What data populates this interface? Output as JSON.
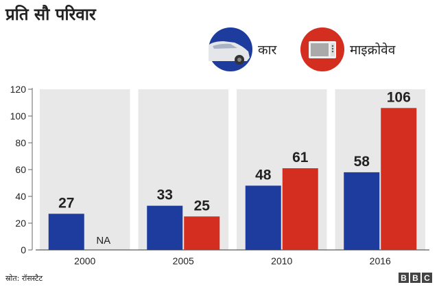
{
  "header": {
    "title": "प्रति सौ परिवार"
  },
  "legend": [
    {
      "label": "कार",
      "color": "#1d3c9e",
      "icon": "car-icon"
    },
    {
      "label": "माइक्रोवेव",
      "color": "#d42e20",
      "icon": "microwave-icon"
    }
  ],
  "chart_data": {
    "type": "bar",
    "title": "प्रति सौ परिवार",
    "categories": [
      "2000",
      "2005",
      "2010",
      "2016"
    ],
    "series": [
      {
        "name": "कार",
        "color": "#1d3c9e",
        "values": [
          27,
          33,
          48,
          58
        ],
        "labels": [
          "27",
          "33",
          "48",
          "58"
        ]
      },
      {
        "name": "माइक्रोवेव",
        "color": "#d42e20",
        "values": [
          null,
          25,
          61,
          106
        ],
        "labels": [
          "NA",
          "25",
          "61",
          "106"
        ]
      }
    ],
    "yticks": [
      "0",
      "20",
      "40",
      "60",
      "80",
      "100",
      "120"
    ],
    "ylim": [
      0,
      120
    ],
    "xlabel": "",
    "ylabel": "",
    "grid": false,
    "legend_position": "top-right",
    "band_color": "#e8e8e8"
  },
  "footer": {
    "source": "स्रोत: रॉसस्टैट",
    "logo": [
      "B",
      "B",
      "C"
    ]
  }
}
